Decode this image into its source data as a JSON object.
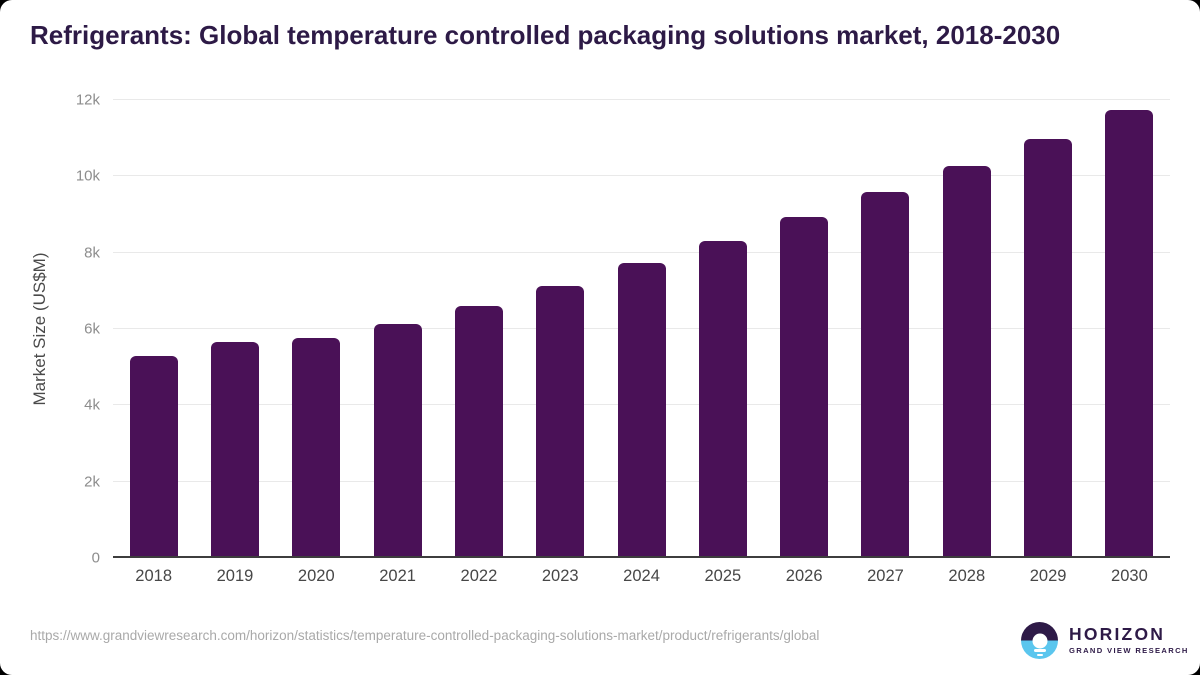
{
  "title": "Refrigerants: Global temperature controlled packaging solutions market, 2018-2030",
  "chart_data": {
    "type": "bar",
    "title": "Refrigerants: Global temperature controlled packaging solutions market, 2018-2030",
    "xlabel": "",
    "ylabel": "Market Size (US$M)",
    "categories": [
      "2018",
      "2019",
      "2020",
      "2021",
      "2022",
      "2023",
      "2024",
      "2025",
      "2026",
      "2027",
      "2028",
      "2029",
      "2030"
    ],
    "values": [
      5300,
      5650,
      5760,
      6130,
      6600,
      7130,
      7740,
      8310,
      8930,
      9580,
      10260,
      10980,
      11730
    ],
    "ylim": [
      0,
      12000
    ],
    "yticks": [
      {
        "value": 0,
        "label": "0"
      },
      {
        "value": 2000,
        "label": "2k"
      },
      {
        "value": 4000,
        "label": "4k"
      },
      {
        "value": 6000,
        "label": "6k"
      },
      {
        "value": 8000,
        "label": "8k"
      },
      {
        "value": 10000,
        "label": "10k"
      },
      {
        "value": 12000,
        "label": "12k"
      }
    ],
    "grid": true,
    "legend": false,
    "bar_color": "#4a1157"
  },
  "footer": {
    "source_url": "https://www.grandviewresearch.com/horizon/statistics/temperature-controlled-packaging-solutions-market/product/refrigerants/global",
    "logo": {
      "brand": "HORIZON",
      "tagline": "GRAND VIEW RESEARCH"
    }
  },
  "colors": {
    "bar": "#4a1157",
    "title_text": "#2d1a46",
    "logo_purple": "#2e1a47",
    "logo_blue": "#5bc6ee",
    "gridline": "#e9e9e9",
    "axis_line": "#3d3d3d"
  }
}
